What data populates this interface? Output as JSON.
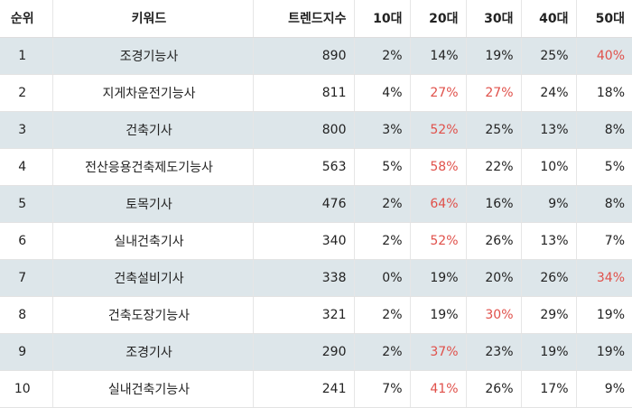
{
  "headers": [
    "순위",
    "키워드",
    "트렌드지수",
    "10대",
    "20대",
    "30대",
    "40대",
    "50대"
  ],
  "highlight_color": "#e0504a",
  "rows": [
    {
      "rank": "1",
      "keyword": "조경기능사",
      "trend": "890",
      "ages": [
        "2%",
        "14%",
        "19%",
        "25%",
        "40%"
      ],
      "highlight": [
        false,
        false,
        false,
        false,
        true
      ]
    },
    {
      "rank": "2",
      "keyword": "지게차운전기능사",
      "trend": "811",
      "ages": [
        "4%",
        "27%",
        "27%",
        "24%",
        "18%"
      ],
      "highlight": [
        false,
        true,
        true,
        false,
        false
      ]
    },
    {
      "rank": "3",
      "keyword": "건축기사",
      "trend": "800",
      "ages": [
        "3%",
        "52%",
        "25%",
        "13%",
        "8%"
      ],
      "highlight": [
        false,
        true,
        false,
        false,
        false
      ]
    },
    {
      "rank": "4",
      "keyword": "전산응용건축제도기능사",
      "trend": "563",
      "ages": [
        "5%",
        "58%",
        "22%",
        "10%",
        "5%"
      ],
      "highlight": [
        false,
        true,
        false,
        false,
        false
      ]
    },
    {
      "rank": "5",
      "keyword": "토목기사",
      "trend": "476",
      "ages": [
        "2%",
        "64%",
        "16%",
        "9%",
        "8%"
      ],
      "highlight": [
        false,
        true,
        false,
        false,
        false
      ]
    },
    {
      "rank": "6",
      "keyword": "실내건축기사",
      "trend": "340",
      "ages": [
        "2%",
        "52%",
        "26%",
        "13%",
        "7%"
      ],
      "highlight": [
        false,
        true,
        false,
        false,
        false
      ]
    },
    {
      "rank": "7",
      "keyword": "건축설비기사",
      "trend": "338",
      "ages": [
        "0%",
        "19%",
        "20%",
        "26%",
        "34%"
      ],
      "highlight": [
        false,
        false,
        false,
        false,
        true
      ]
    },
    {
      "rank": "8",
      "keyword": "건축도장기능사",
      "trend": "321",
      "ages": [
        "2%",
        "19%",
        "30%",
        "29%",
        "19%"
      ],
      "highlight": [
        false,
        false,
        true,
        false,
        false
      ]
    },
    {
      "rank": "9",
      "keyword": "조경기사",
      "trend": "290",
      "ages": [
        "2%",
        "37%",
        "23%",
        "19%",
        "19%"
      ],
      "highlight": [
        false,
        true,
        false,
        false,
        false
      ]
    },
    {
      "rank": "10",
      "keyword": "실내건축기능사",
      "trend": "241",
      "ages": [
        "7%",
        "41%",
        "26%",
        "17%",
        "9%"
      ],
      "highlight": [
        false,
        true,
        false,
        false,
        false
      ]
    }
  ]
}
